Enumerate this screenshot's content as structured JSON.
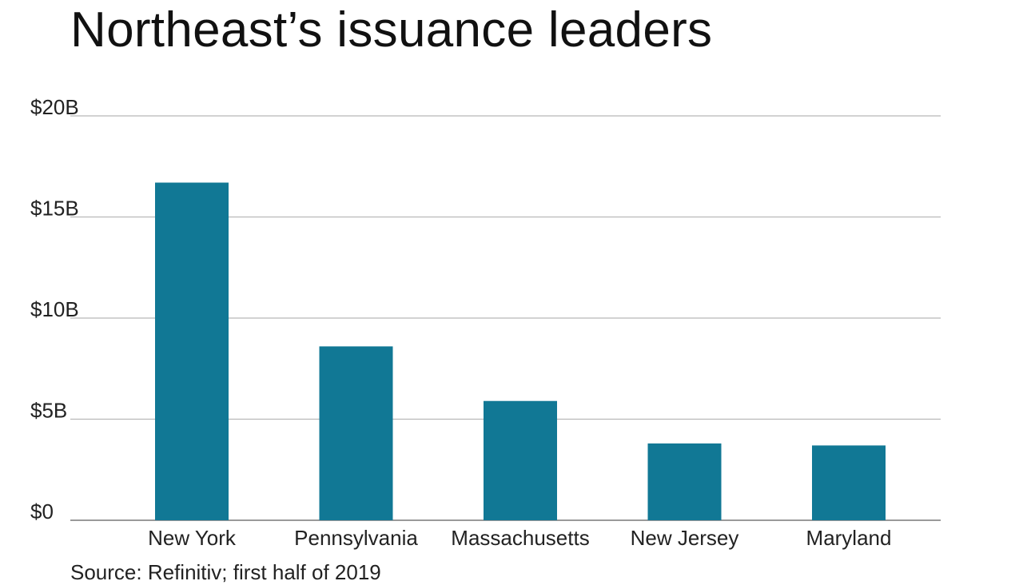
{
  "title": "Northeast’s issuance leaders",
  "source": "Source: Refinitiv; first half of 2019",
  "colors": {
    "bar": "#117895",
    "grid": "#b8b8b8",
    "axis": "#9a9a9a"
  },
  "chart_data": {
    "type": "bar",
    "title": "Northeast’s issuance leaders",
    "xlabel": "",
    "ylabel": "",
    "categories": [
      "New York",
      "Pennsylvania",
      "Massachusetts",
      "New Jersey",
      "Maryland"
    ],
    "values": [
      16.7,
      8.6,
      5.9,
      3.8,
      3.7
    ],
    "unit": "$ billions",
    "ylim": [
      0,
      20
    ],
    "y_ticks": [
      0,
      5,
      10,
      15,
      20
    ],
    "y_tick_labels": [
      "$0",
      "$5B",
      "$10B",
      "$15B",
      "$20B"
    ],
    "grid": true,
    "legend": "none"
  }
}
